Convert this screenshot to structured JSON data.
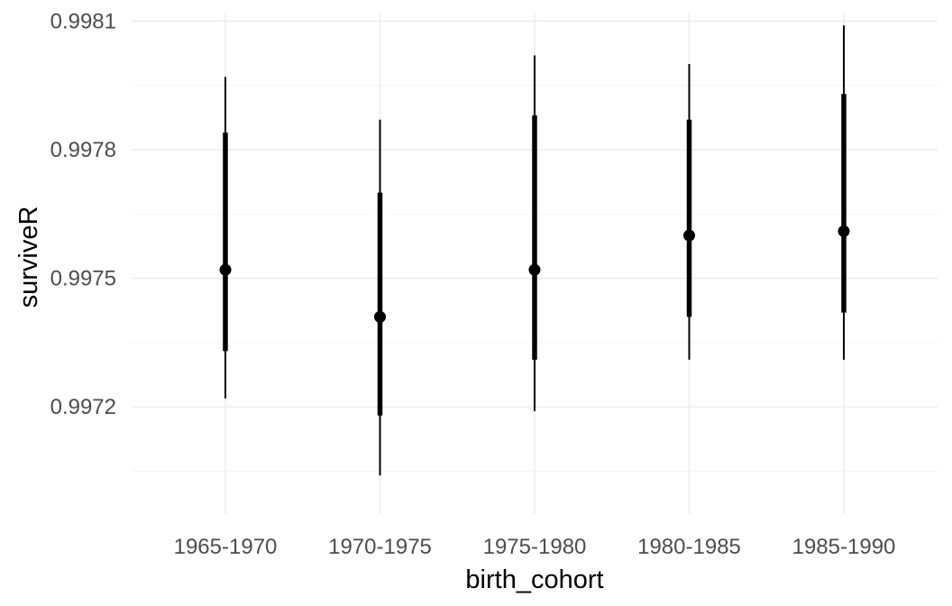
{
  "chart_data": {
    "type": "pointrange",
    "xlabel": "birth_cohort",
    "ylabel": "surviveR",
    "categories": [
      "1965-1970",
      "1970-1975",
      "1975-1980",
      "1980-1985",
      "1985-1990"
    ],
    "ylim": [
      0.99695,
      0.99812
    ],
    "yticks": [
      0.9972,
      0.9975,
      0.9978,
      0.9981
    ],
    "ytick_labels": [
      "0.9972",
      "0.9975",
      "0.9978",
      "0.9981"
    ],
    "grid": true,
    "series": [
      {
        "estimate": [
          0.99752,
          0.99741,
          0.99752,
          0.9976,
          0.99761
        ],
        "inner_low": [
          0.99733,
          0.99718,
          0.99731,
          0.99741,
          0.99742
        ],
        "inner_high": [
          0.99784,
          0.9977,
          0.99788,
          0.99787,
          0.99793
        ],
        "outer_low": [
          0.99722,
          0.99704,
          0.99719,
          0.99731,
          0.99731
        ],
        "outer_high": [
          0.99797,
          0.99787,
          0.99802,
          0.998,
          0.99809
        ]
      }
    ],
    "colors": {
      "mark": "#000000",
      "grid_major": "#ebebeb",
      "grid_minor": "#f4f4f4"
    }
  }
}
